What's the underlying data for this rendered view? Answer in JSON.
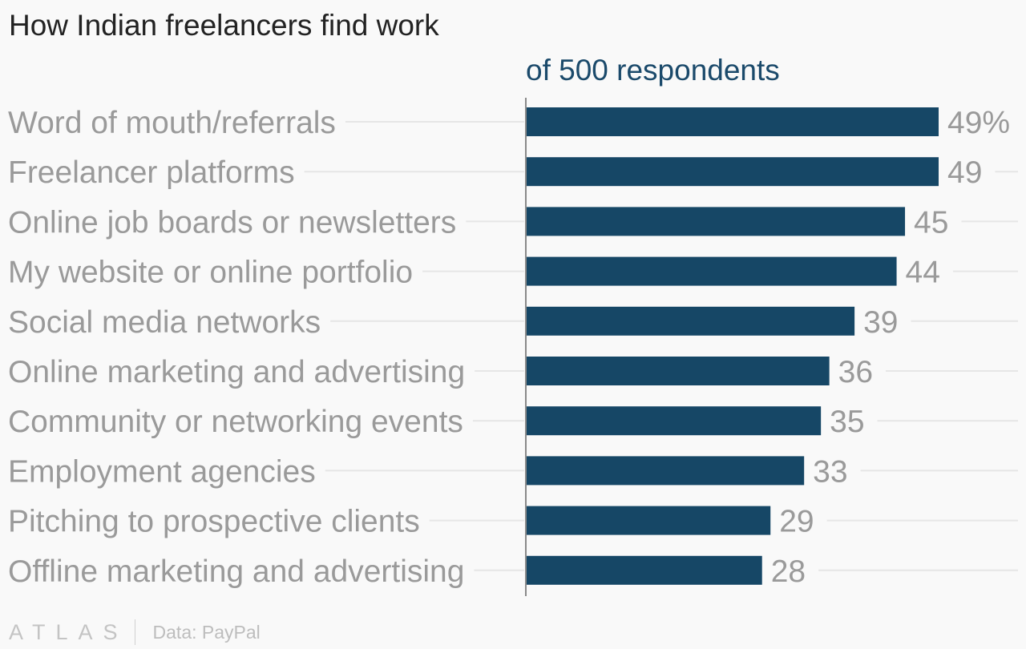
{
  "title": "How Indian freelancers find work",
  "subtitle": "of 500 respondents",
  "colors": {
    "bar": "#164766",
    "label": "#9a9a9a",
    "grid": "#e6e6e6",
    "axis": "#8a8a8a",
    "title": "#222222",
    "subtitle": "#1b4a6b"
  },
  "chart_data": {
    "type": "bar",
    "orientation": "horizontal",
    "categories": [
      "Word of mouth/referrals",
      "Freelancer platforms",
      "Online job boards or newsletters",
      "My website or online portfolio",
      "Social media networks",
      "Online marketing and advertising",
      "Community or networking events",
      "Employment agencies",
      "Pitching to prospective clients",
      "Offline marketing and advertising"
    ],
    "values": [
      49,
      49,
      45,
      44,
      39,
      36,
      35,
      33,
      29,
      28
    ],
    "value_labels": [
      "49%",
      "49",
      "45",
      "44",
      "39",
      "36",
      "35",
      "33",
      "29",
      "28"
    ],
    "unit": "%",
    "xlim": [
      0,
      60
    ],
    "grid": true
  },
  "footer": {
    "logo": "ATLAS",
    "source": "Data: PayPal"
  }
}
